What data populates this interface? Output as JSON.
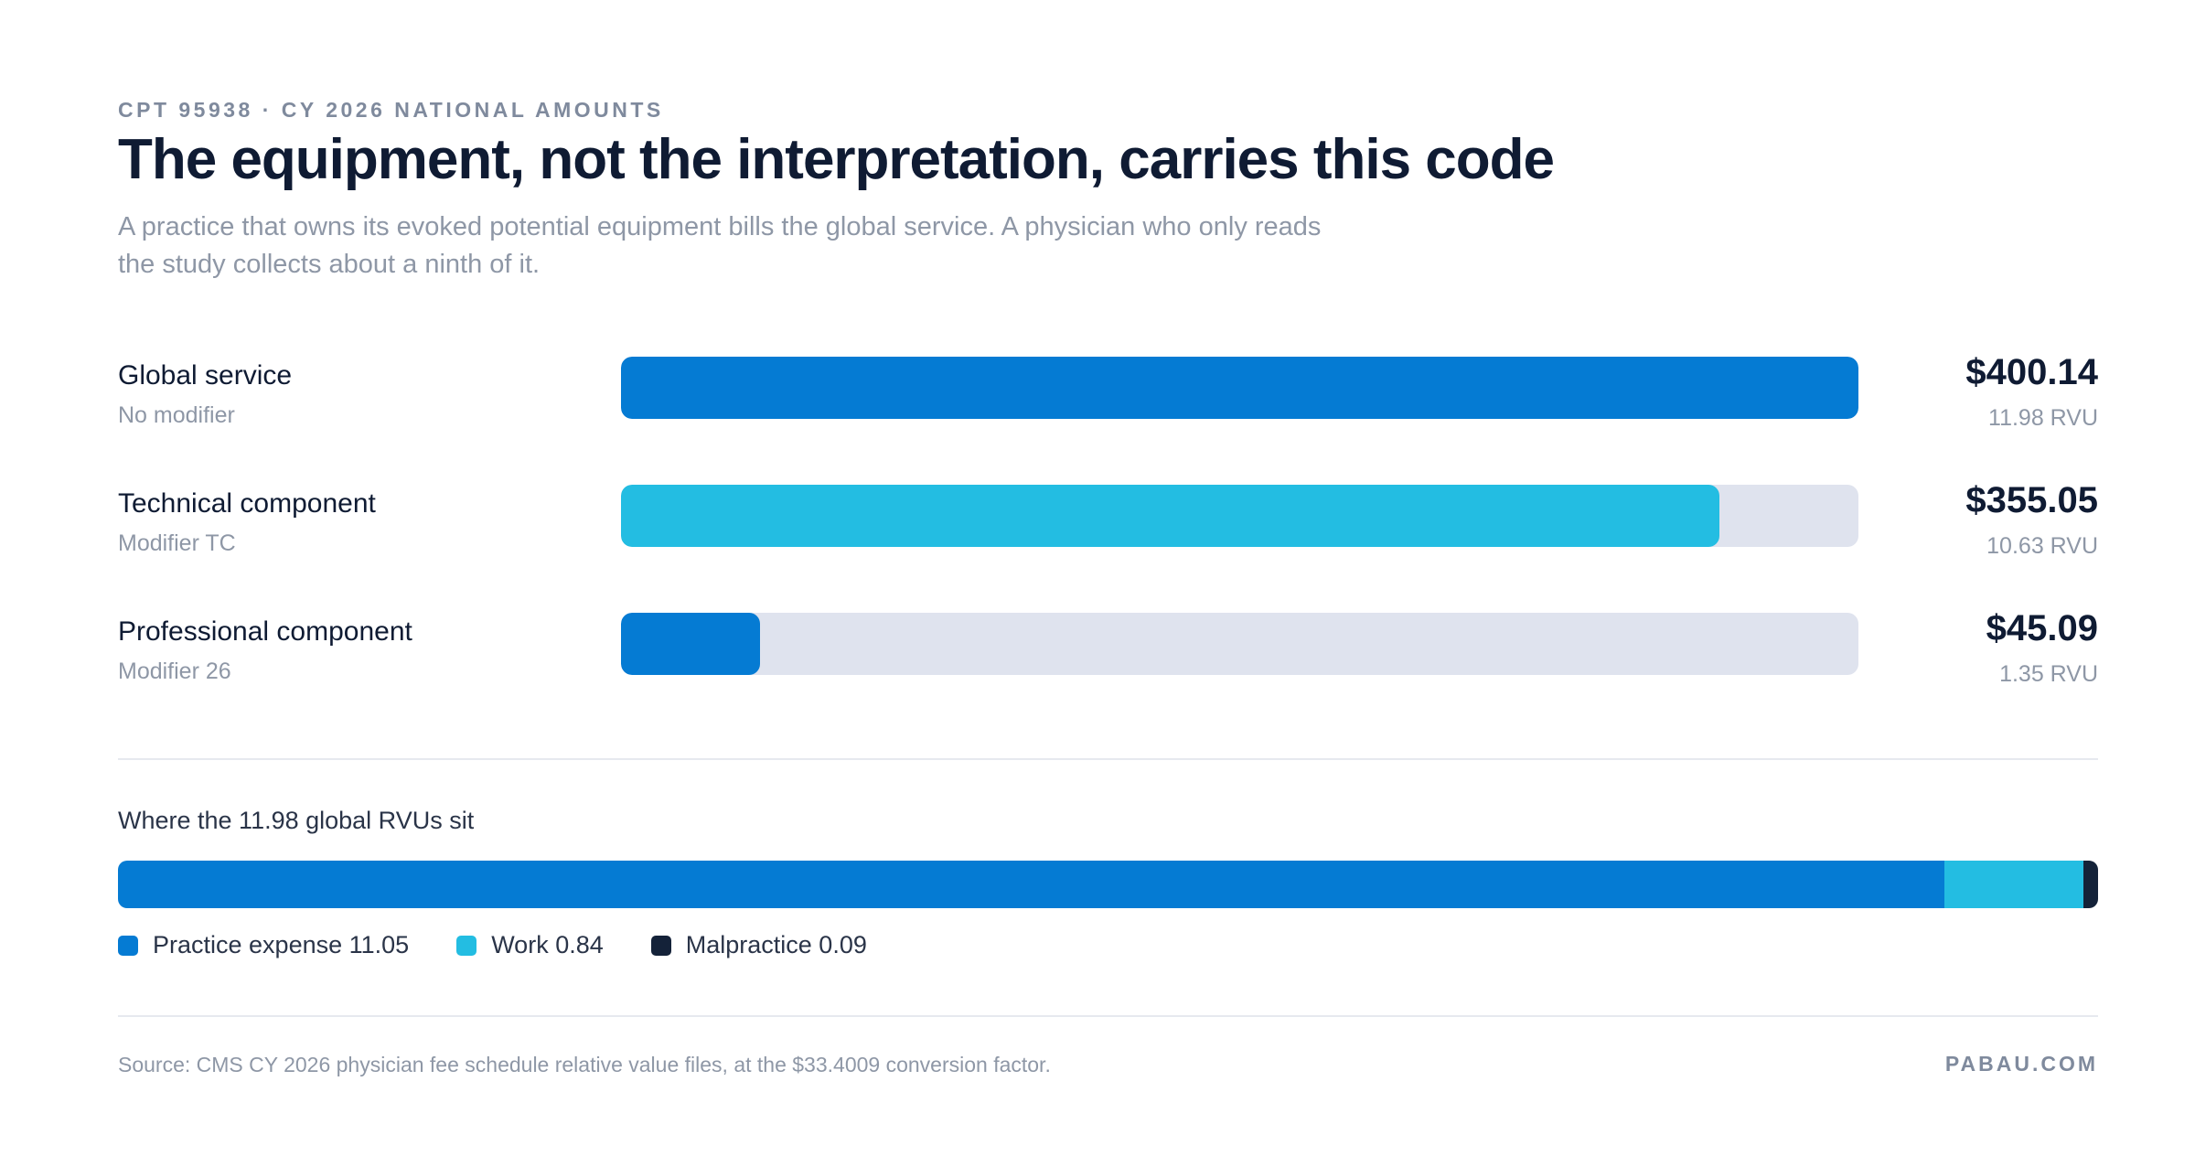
{
  "header": {
    "eyebrow": "CPT 95938 · CY 2026 NATIONAL AMOUNTS",
    "title": "The equipment, not the interpretation, carries this code",
    "subtitle": "A practice that owns its evoked potential equipment bills the global service. A physician who only reads the study collects about a ninth of it."
  },
  "colors": {
    "global": "#057bd3",
    "technical": "#23bde2",
    "professional": "#057bd3",
    "track": "#dfe3ee",
    "practice_expense": "#057bd3",
    "work": "#23bde2",
    "malpractice": "#142239"
  },
  "chart_data": [
    {
      "type": "bar",
      "orientation": "horizontal",
      "xlim": [
        0,
        400.14
      ],
      "bars": [
        {
          "label": "Global service",
          "sublabel": "No modifier",
          "value": 400.14,
          "value_label": "$400.14",
          "rvu_label": "11.98 RVU"
        },
        {
          "label": "Technical component",
          "sublabel": "Modifier TC",
          "value": 355.05,
          "value_label": "$355.05",
          "rvu_label": "10.63 RVU"
        },
        {
          "label": "Professional component",
          "sublabel": "Modifier 26",
          "value": 45.09,
          "value_label": "$45.09",
          "rvu_label": "1.35 RVU"
        }
      ]
    },
    {
      "type": "bar",
      "orientation": "horizontal-stacked",
      "title": "Where the 11.98 global RVUs sit",
      "total": 11.98,
      "series": [
        {
          "name": "Practice expense",
          "value": 11.05,
          "legend_label": "Practice expense 11.05"
        },
        {
          "name": "Work",
          "value": 0.84,
          "legend_label": "Work 0.84"
        },
        {
          "name": "Malpractice",
          "value": 0.09,
          "legend_label": "Malpractice 0.09"
        }
      ]
    }
  ],
  "footer": {
    "source": "Source: CMS CY 2026 physician fee schedule relative value files, at the $33.4009 conversion factor.",
    "brand": "PABAU.COM"
  }
}
